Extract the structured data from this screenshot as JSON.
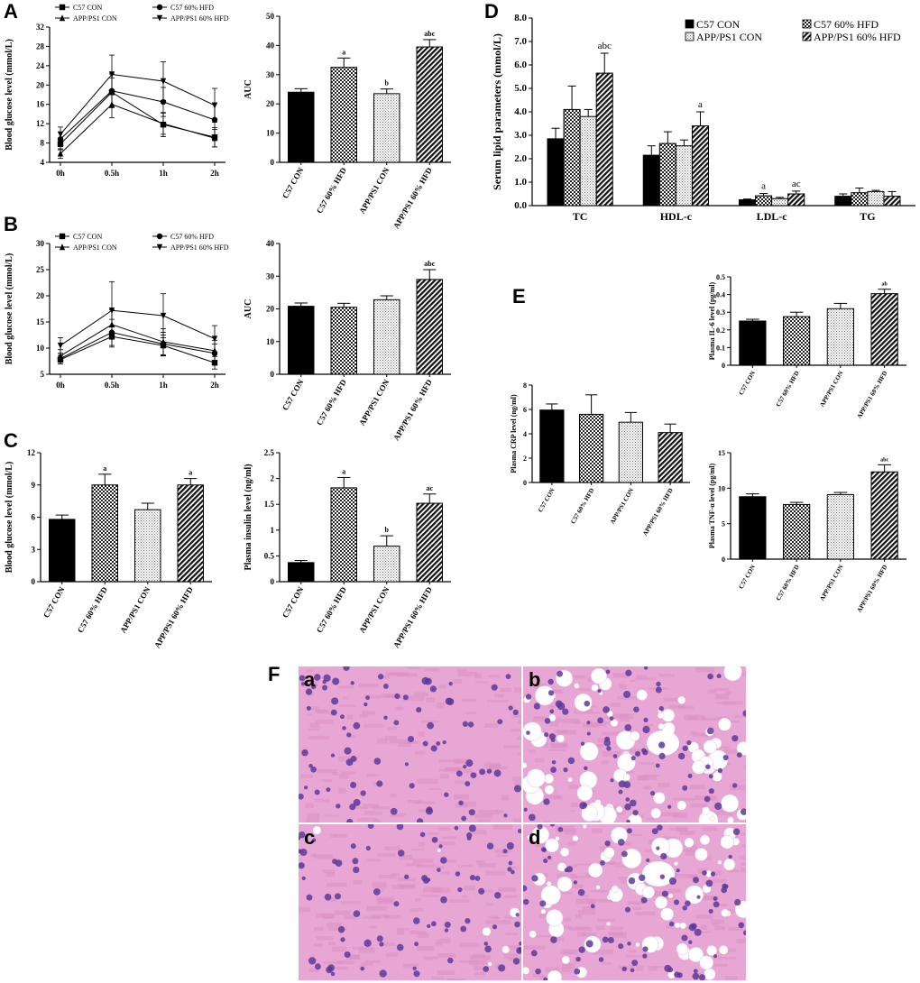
{
  "panels": {
    "A": "A",
    "B": "B",
    "C": "C",
    "D": "D",
    "E": "E",
    "F": "F"
  },
  "histology": {
    "labels": [
      "a",
      "b",
      "c",
      "d"
    ],
    "stain_colors": {
      "background": "#e7a6d3",
      "nucleus": "#5c3a9a",
      "vacuole": "#ffffff"
    }
  },
  "chart_data": [
    {
      "id": "A-line",
      "type": "line",
      "x": [
        "0h",
        "0.5h",
        "1h",
        "2h"
      ],
      "ylabel": "Blood glucose level (mmol/L)",
      "ylim": [
        4,
        32
      ],
      "yticks": [
        4,
        8,
        12,
        16,
        20,
        24,
        28,
        32
      ],
      "legend": "top",
      "series": [
        {
          "name": "C57 CON",
          "marker": "square",
          "values": [
            7.8,
            18.5,
            11.8,
            9.2
          ],
          "err": [
            1.2,
            3.0,
            2.5,
            2.0
          ]
        },
        {
          "name": "C57 60% HFD",
          "marker": "circle",
          "values": [
            8.8,
            18.8,
            16.5,
            12.8
          ],
          "err": [
            1.5,
            3.5,
            3.0,
            3.5
          ]
        },
        {
          "name": "APP/PS1 CON",
          "marker": "triangle",
          "values": [
            5.8,
            16.0,
            12.0,
            9.0
          ],
          "err": [
            1.0,
            2.8,
            2.2,
            1.8
          ]
        },
        {
          "name": "APP/PS1 60% HFD",
          "marker": "triangle-down",
          "values": [
            9.8,
            22.2,
            20.8,
            15.8
          ],
          "err": [
            1.5,
            4.0,
            4.0,
            3.5
          ]
        }
      ]
    },
    {
      "id": "A-bar",
      "type": "bar",
      "categories": [
        "C57 CON",
        "C57 60% HFD",
        "APP/PS1 CON",
        "APP/PS1 60% HFD"
      ],
      "values": [
        24,
        32.5,
        23.5,
        39.5
      ],
      "err": [
        1.2,
        3.2,
        1.6,
        2.5
      ],
      "labels": [
        "",
        "a",
        "b",
        "abc"
      ],
      "ylabel": "AUC",
      "ylim": [
        0,
        50
      ],
      "yticks": [
        0,
        10,
        20,
        30,
        40,
        50
      ]
    },
    {
      "id": "B-line",
      "type": "line",
      "x": [
        "0h",
        "0.5h",
        "1h",
        "2h"
      ],
      "ylabel": "Blood glucose level (mmol/L)",
      "ylim": [
        5,
        30
      ],
      "yticks": [
        5,
        10,
        15,
        20,
        25,
        30
      ],
      "legend": "top",
      "series": [
        {
          "name": "C57 CON",
          "marker": "square",
          "values": [
            7.8,
            12.2,
            10.5,
            7.2
          ],
          "err": [
            0.8,
            2.0,
            2.0,
            1.2
          ]
        },
        {
          "name": "C57 60% HFD",
          "marker": "circle",
          "values": [
            8.0,
            13.0,
            10.8,
            9.0
          ],
          "err": [
            1.0,
            2.5,
            2.2,
            1.8
          ]
        },
        {
          "name": "APP/PS1 CON",
          "marker": "triangle",
          "values": [
            8.5,
            14.5,
            11.2,
            9.5
          ],
          "err": [
            1.2,
            2.8,
            2.5,
            2.0
          ]
        },
        {
          "name": "APP/PS1 60% HFD",
          "marker": "triangle-down",
          "values": [
            10.5,
            17.2,
            16.2,
            11.8
          ],
          "err": [
            1.5,
            5.5,
            4.2,
            2.5
          ]
        }
      ]
    },
    {
      "id": "B-bar",
      "type": "bar",
      "categories": [
        "C57 CON",
        "C57 60% HFD",
        "APP/PS1 CON",
        "APP/PS1 60% HFD"
      ],
      "values": [
        20.8,
        20.5,
        22.8,
        29.0
      ],
      "err": [
        1.0,
        1.2,
        1.2,
        3.0
      ],
      "labels": [
        "",
        "",
        "",
        "abc"
      ],
      "ylabel": "AUC",
      "ylim": [
        0,
        40
      ],
      "yticks": [
        0,
        10,
        20,
        30,
        40
      ]
    },
    {
      "id": "C-glucose",
      "type": "bar",
      "categories": [
        "C57 CON",
        "C57 60% HFD",
        "APP/PS1 CON",
        "APP/PS1 60% HFD"
      ],
      "values": [
        5.8,
        9.0,
        6.7,
        9.0
      ],
      "err": [
        0.4,
        1.0,
        0.6,
        0.6
      ],
      "labels": [
        "",
        "a",
        "",
        "a"
      ],
      "ylabel": "Blood glucose level (mmol/L)",
      "ylim": [
        0,
        12
      ],
      "yticks": [
        0,
        3,
        6,
        9,
        12
      ]
    },
    {
      "id": "C-insulin",
      "type": "bar",
      "categories": [
        "C57 CON",
        "C57 60% HFD",
        "APP/PS1 CON",
        "APP/PS1 60% HFD"
      ],
      "values": [
        0.37,
        1.82,
        0.69,
        1.52
      ],
      "err": [
        0.04,
        0.2,
        0.2,
        0.18
      ],
      "labels": [
        "",
        "a",
        "b",
        "ac"
      ],
      "ylabel": "Plasma insulin level (ng/ml)",
      "ylim": [
        0,
        2.5
      ],
      "yticks": [
        0.0,
        0.5,
        1.0,
        1.5,
        2.0,
        2.5
      ]
    },
    {
      "id": "D-lipids",
      "type": "bar",
      "categories": [
        "TC",
        "HDL-c",
        "LDL-c",
        "TG"
      ],
      "series": [
        {
          "name": "C57 CON",
          "values": [
            2.85,
            2.15,
            0.25,
            0.4
          ],
          "err": [
            0.45,
            0.4,
            0.03,
            0.1
          ]
        },
        {
          "name": "C57 60% HFD",
          "values": [
            4.1,
            2.65,
            0.42,
            0.55
          ],
          "err": [
            1.0,
            0.5,
            0.1,
            0.2
          ]
        },
        {
          "name": "APP/PS1 CON",
          "values": [
            3.8,
            2.55,
            0.3,
            0.6
          ],
          "err": [
            0.3,
            0.25,
            0.05,
            0.05
          ]
        },
        {
          "name": "APP/PS1 60% HFD",
          "values": [
            5.65,
            3.4,
            0.5,
            0.4
          ],
          "err": [
            0.85,
            0.6,
            0.12,
            0.2
          ]
        }
      ],
      "labels": [
        [
          "",
          "",
          "",
          "abc"
        ],
        [
          "",
          "",
          "",
          "a"
        ],
        [
          "",
          "a",
          "",
          "ac"
        ],
        [
          "",
          "",
          "",
          ""
        ]
      ],
      "ylabel": "Serum lipid parameters (mmol/L)",
      "ylim": [
        0,
        8
      ],
      "yticks": [
        "0.0",
        "1.0",
        "2.0",
        "3.0",
        "4.0",
        "5.0",
        "6.0",
        "7.0",
        "8.0"
      ],
      "legend": "top-right"
    },
    {
      "id": "E-crp",
      "type": "bar",
      "categories": [
        "C57 CON",
        "C57 60% HFD",
        "APP/PS1 CON",
        "APP/PS1 60% HFD"
      ],
      "values": [
        5.95,
        5.6,
        4.95,
        4.1
      ],
      "err": [
        0.5,
        1.6,
        0.8,
        0.7
      ],
      "labels": [
        "",
        "",
        "",
        ""
      ],
      "ylabel": "Plasma CRP level (ng/ml)",
      "ylim": [
        0,
        8
      ],
      "yticks": [
        0,
        2,
        4,
        6,
        8
      ]
    },
    {
      "id": "E-il6",
      "type": "bar",
      "categories": [
        "C57 CON",
        "C57 60% HFD",
        "APP/PS1 CON",
        "APP/PS1 60% HFD"
      ],
      "values": [
        0.25,
        0.275,
        0.32,
        0.405
      ],
      "err": [
        0.01,
        0.025,
        0.03,
        0.025
      ],
      "labels": [
        "",
        "",
        "",
        "ab"
      ],
      "ylabel": "Plasma IL-6 level (pg/ml)",
      "ylim": [
        0,
        0.5
      ],
      "yticks": [
        0.0,
        0.1,
        0.2,
        0.3,
        0.4,
        0.5
      ]
    },
    {
      "id": "E-tnf",
      "type": "bar",
      "categories": [
        "C57 CON",
        "C57 60% HFD",
        "APP/PS1 CON",
        "APP/PS1 60% HFD"
      ],
      "values": [
        8.8,
        7.7,
        9.1,
        12.3
      ],
      "err": [
        0.4,
        0.3,
        0.3,
        1.0
      ],
      "labels": [
        "",
        "",
        "",
        "abc"
      ],
      "ylabel": "Plasma TNF-α level (pg/ml)",
      "ylim": [
        0,
        15
      ],
      "yticks": [
        0,
        5,
        10,
        15
      ]
    }
  ]
}
